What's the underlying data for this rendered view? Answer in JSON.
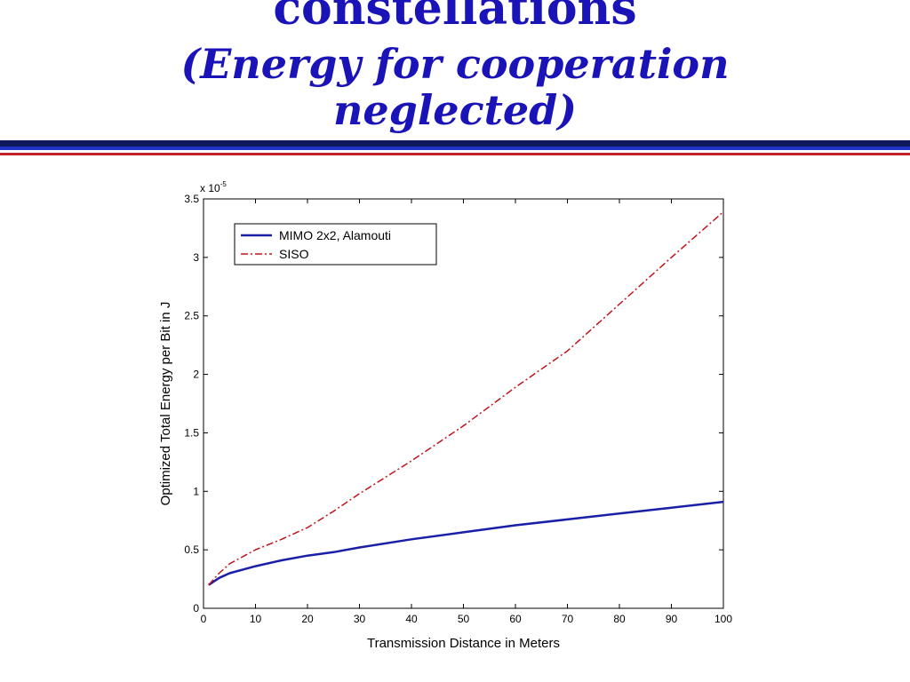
{
  "slide": {
    "title_line1": "constellations",
    "title_line2": "(Energy for cooperation",
    "title_line3": "neglected)"
  },
  "colors": {
    "title": "#1a14b8",
    "mimo": "#1a1fa8",
    "siso": "#c0141a"
  },
  "chart_data": {
    "type": "line",
    "title": "",
    "xlabel": "Transmission Distance in Meters",
    "ylabel": "Optimized Total Energy per Bit in J",
    "y_multiplier_label": "x 10",
    "y_multiplier_exponent": "-5",
    "xlim": [
      0,
      100
    ],
    "ylim": [
      0,
      3.5
    ],
    "xticks": [
      0,
      10,
      20,
      30,
      40,
      50,
      60,
      70,
      80,
      90,
      100
    ],
    "yticks": [
      0,
      0.5,
      1,
      1.5,
      2,
      2.5,
      3,
      3.5
    ],
    "xtick_labels": [
      "0",
      "10",
      "20",
      "30",
      "40",
      "50",
      "60",
      "70",
      "80",
      "90",
      "100"
    ],
    "ytick_labels": [
      "0",
      "0.5",
      "1",
      "1.5",
      "2",
      "2.5",
      "3",
      "3.5"
    ],
    "grid": false,
    "legend_position": "top-left",
    "series": [
      {
        "name": "MIMO 2x2, Alamouti",
        "style": "solid",
        "x": [
          1,
          3,
          5,
          10,
          15,
          20,
          25,
          30,
          40,
          50,
          60,
          70,
          80,
          90,
          100
        ],
        "y": [
          0.2,
          0.26,
          0.3,
          0.36,
          0.41,
          0.45,
          0.48,
          0.52,
          0.59,
          0.65,
          0.71,
          0.76,
          0.81,
          0.86,
          0.91
        ]
      },
      {
        "name": "SISO",
        "style": "dash-dot",
        "x": [
          1,
          3,
          5,
          10,
          15,
          20,
          25,
          30,
          40,
          50,
          60,
          70,
          80,
          90,
          100
        ],
        "y": [
          0.2,
          0.3,
          0.38,
          0.5,
          0.59,
          0.69,
          0.83,
          0.98,
          1.26,
          1.56,
          1.89,
          2.2,
          2.6,
          3.0,
          3.39
        ]
      }
    ]
  }
}
